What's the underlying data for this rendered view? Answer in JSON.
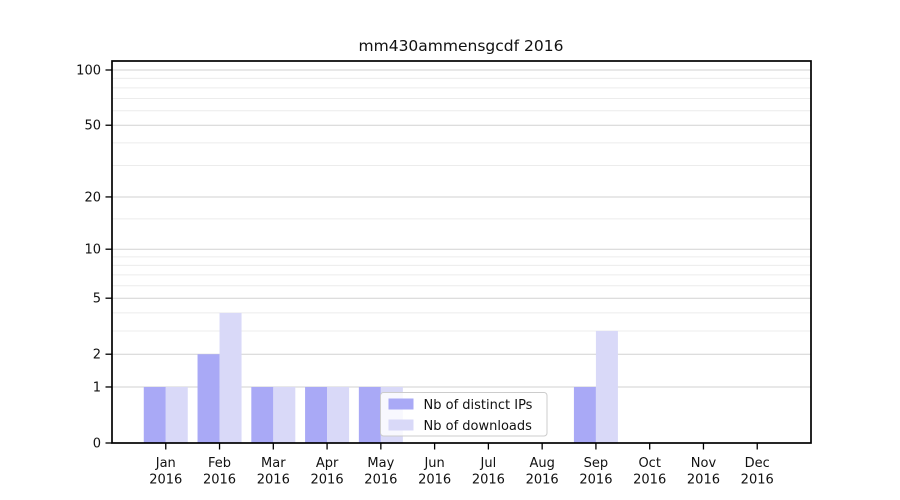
{
  "title": "mm430ammensgcdf 2016",
  "chart_data": {
    "type": "bar",
    "title": "mm430ammensgcdf 2016",
    "categories": [
      "Jan 2016",
      "Feb 2016",
      "Mar 2016",
      "Apr 2016",
      "May 2016",
      "Jun 2016",
      "Jul 2016",
      "Aug 2016",
      "Sep 2016",
      "Oct 2016",
      "Nov 2016",
      "Dec 2016"
    ],
    "series": [
      {
        "name": "Nb of distinct IPs",
        "color": "#a9a9f6",
        "values": [
          1,
          2,
          1,
          1,
          1,
          0,
          0,
          0,
          1,
          0,
          0,
          0
        ]
      },
      {
        "name": "Nb of downloads",
        "color": "#d9d9f8",
        "values": [
          1,
          4,
          1,
          1,
          1,
          0,
          0,
          0,
          3,
          0,
          0,
          0
        ]
      }
    ],
    "yscale": "log1p",
    "ylim": [
      0,
      100
    ],
    "yticks": [
      0,
      1,
      2,
      5,
      10,
      20,
      50,
      100
    ],
    "yticks_minor": [
      3,
      4,
      6,
      7,
      8,
      9,
      15,
      30,
      40,
      60,
      70,
      80,
      90
    ],
    "grid": true,
    "legend_position": "lower-center"
  },
  "colors": {
    "background": "#ffffff",
    "spine": "#000000",
    "grid_major": "#d2d2d2",
    "grid_minor": "#ececec",
    "text": "#111111",
    "legend_border": "#cccccc",
    "legend_bg_opacity": "0.82"
  }
}
